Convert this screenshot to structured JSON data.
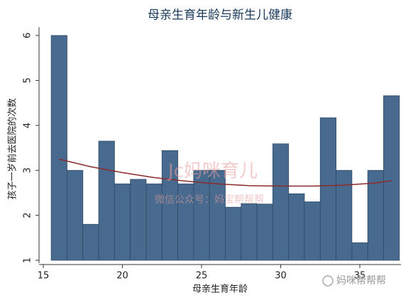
{
  "chart_data": {
    "type": "bar",
    "title": "母亲生育年龄与新生儿健康",
    "x_label": "母亲生育年龄",
    "y_label": "孩子一岁前去医院的次数",
    "x": [
      16,
      17,
      18,
      19,
      20,
      21,
      22,
      23,
      24,
      25,
      26,
      27,
      28,
      29,
      30,
      31,
      32,
      33,
      34,
      35,
      36,
      37
    ],
    "values": [
      6,
      3,
      1.8,
      3.65,
      2.7,
      2.8,
      2.7,
      3.44,
      2.7,
      3,
      3,
      2.18,
      2.26,
      2.25,
      3.59,
      2.48,
      2.3,
      4.17,
      3,
      1.39,
      3,
      4.66
    ],
    "color": "#476a8e",
    "fit": {
      "x": [
        16,
        18,
        20,
        22,
        24,
        26,
        28,
        30,
        32,
        34,
        36,
        37
      ],
      "values": [
        3.25,
        3.08,
        2.95,
        2.84,
        2.76,
        2.7,
        2.66,
        2.65,
        2.65,
        2.67,
        2.72,
        2.77
      ],
      "color": "#8b2a2a"
    },
    "xlim": [
      15,
      37.6
    ],
    "ylim": [
      1,
      6.15
    ],
    "xticks": [
      15,
      20,
      25,
      30,
      35
    ],
    "yticks": [
      1,
      2,
      3,
      4,
      5,
      6
    ],
    "watermarks": [
      "Jc妈咪育儿",
      "微信公众号：妈宝帮帮帮"
    ],
    "logo": "妈咪帮帮帮"
  }
}
